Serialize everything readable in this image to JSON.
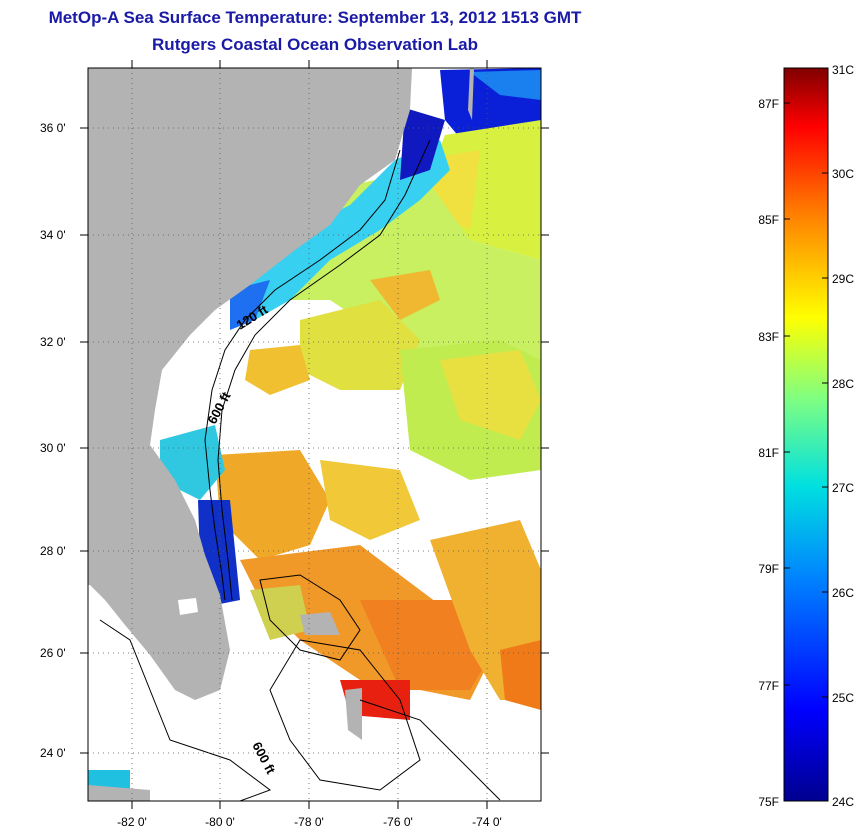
{
  "title": "MetOp-A Sea Surface Temperature:  September 13, 2012 1513 GMT",
  "subtitle": "Rutgers Coastal Ocean Observation Lab",
  "lat_labels": [
    "36 0'",
    "34 0'",
    "32 0'",
    "30 0'",
    "28 0'",
    "26 0'",
    "24 0'"
  ],
  "lon_labels": [
    "-82 0'",
    "-80 0'",
    "-78 0'",
    "-76 0'",
    "-74 0'"
  ],
  "contours": {
    "c120": "120 ft",
    "c600a": "600 ft",
    "c600b": "600 ft"
  },
  "colorbar": {
    "celsius": [
      "31C",
      "30C",
      "29C",
      "28C",
      "27C",
      "26C",
      "25C",
      "24C"
    ],
    "fahrenheit": [
      "87F",
      "85F",
      "83F",
      "81F",
      "79F",
      "77F",
      "75F"
    ]
  },
  "colors": {
    "land": "#b3b3b3",
    "title": "#1a1aa6",
    "no_data": "#ffffff"
  }
}
